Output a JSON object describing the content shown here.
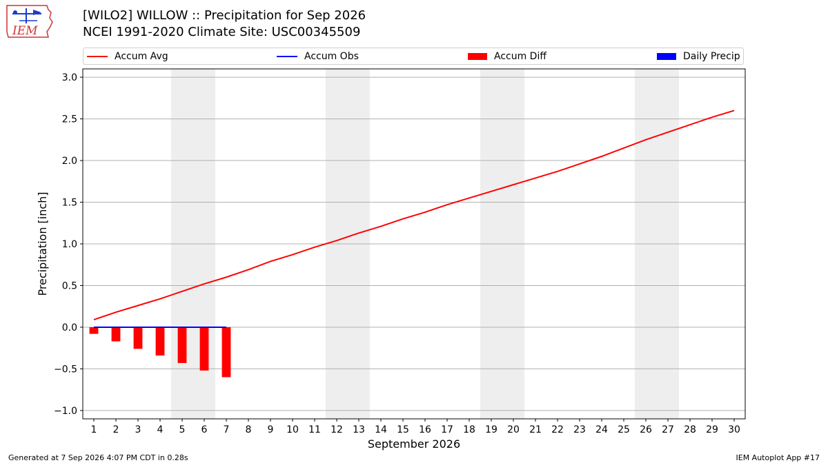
{
  "header": {
    "title_line1": "[WILO2] WILLOW :: Precipitation for Sep 2026",
    "title_line2": "NCEI 1991-2020 Climate Site: USC00345509"
  },
  "logo": {
    "text": "IEM",
    "icon": "iem-iowa-logo-icon"
  },
  "legend": [
    {
      "label": "Accum Avg",
      "kind": "line",
      "color": "#ff0000"
    },
    {
      "label": "Accum Obs",
      "kind": "line",
      "color": "#0000ff"
    },
    {
      "label": "Accum Diff",
      "kind": "bar",
      "color": "#ff0000"
    },
    {
      "label": "Daily Precip",
      "kind": "bar",
      "color": "#0000ff"
    }
  ],
  "footer": {
    "left": "Generated at 7 Sep 2026 4:07 PM CDT in 0.28s",
    "right": "IEM Autoplot App #17"
  },
  "chart_data": {
    "type": "line",
    "xlabel": "September 2026",
    "ylabel": "Precipitation [inch]",
    "xlim": [
      0.5,
      30.5
    ],
    "ylim": [
      -1.1,
      3.1
    ],
    "x_ticks": [
      1,
      2,
      3,
      4,
      5,
      6,
      7,
      8,
      9,
      10,
      11,
      12,
      13,
      14,
      15,
      16,
      17,
      18,
      19,
      20,
      21,
      22,
      23,
      24,
      25,
      26,
      27,
      28,
      29,
      30
    ],
    "y_ticks": [
      -1.0,
      -0.5,
      0.0,
      0.5,
      1.0,
      1.5,
      2.0,
      2.5,
      3.0
    ],
    "y_tick_labels": [
      "−1.0",
      "−0.5",
      "0.0",
      "0.5",
      "1.0",
      "1.5",
      "2.0",
      "2.5",
      "3.0"
    ],
    "grid": true,
    "legend_position": "top",
    "weekend_shading": [
      [
        4.5,
        6.5
      ],
      [
        11.5,
        13.5
      ],
      [
        18.5,
        20.5
      ],
      [
        25.5,
        27.5
      ]
    ],
    "weekend_color": "#eeeeee",
    "series": [
      {
        "name": "Accum Avg",
        "type": "line",
        "color": "#ff0000",
        "x": [
          1,
          2,
          3,
          4,
          5,
          6,
          7,
          8,
          9,
          10,
          11,
          12,
          13,
          14,
          15,
          16,
          17,
          18,
          19,
          20,
          21,
          22,
          23,
          24,
          25,
          26,
          27,
          28,
          29,
          30
        ],
        "values": [
          0.09,
          0.18,
          0.26,
          0.34,
          0.43,
          0.52,
          0.6,
          0.69,
          0.79,
          0.87,
          0.96,
          1.04,
          1.13,
          1.21,
          1.3,
          1.38,
          1.47,
          1.55,
          1.63,
          1.71,
          1.79,
          1.87,
          1.96,
          2.05,
          2.15,
          2.25,
          2.34,
          2.43,
          2.52,
          2.6
        ]
      },
      {
        "name": "Accum Obs",
        "type": "line",
        "color": "#0000ff",
        "x": [
          1,
          2,
          3,
          4,
          5,
          6,
          7
        ],
        "values": [
          0,
          0,
          0,
          0,
          0,
          0,
          0
        ]
      },
      {
        "name": "Accum Diff",
        "type": "bar",
        "color": "#ff0000",
        "x": [
          1,
          2,
          3,
          4,
          5,
          6,
          7
        ],
        "values": [
          -0.08,
          -0.17,
          -0.26,
          -0.34,
          -0.43,
          -0.52,
          -0.6
        ]
      },
      {
        "name": "Daily Precip",
        "type": "bar",
        "color": "#0000ff",
        "x": [
          1,
          2,
          3,
          4,
          5,
          6,
          7
        ],
        "values": [
          0,
          0,
          0,
          0,
          0,
          0,
          0
        ]
      }
    ]
  }
}
